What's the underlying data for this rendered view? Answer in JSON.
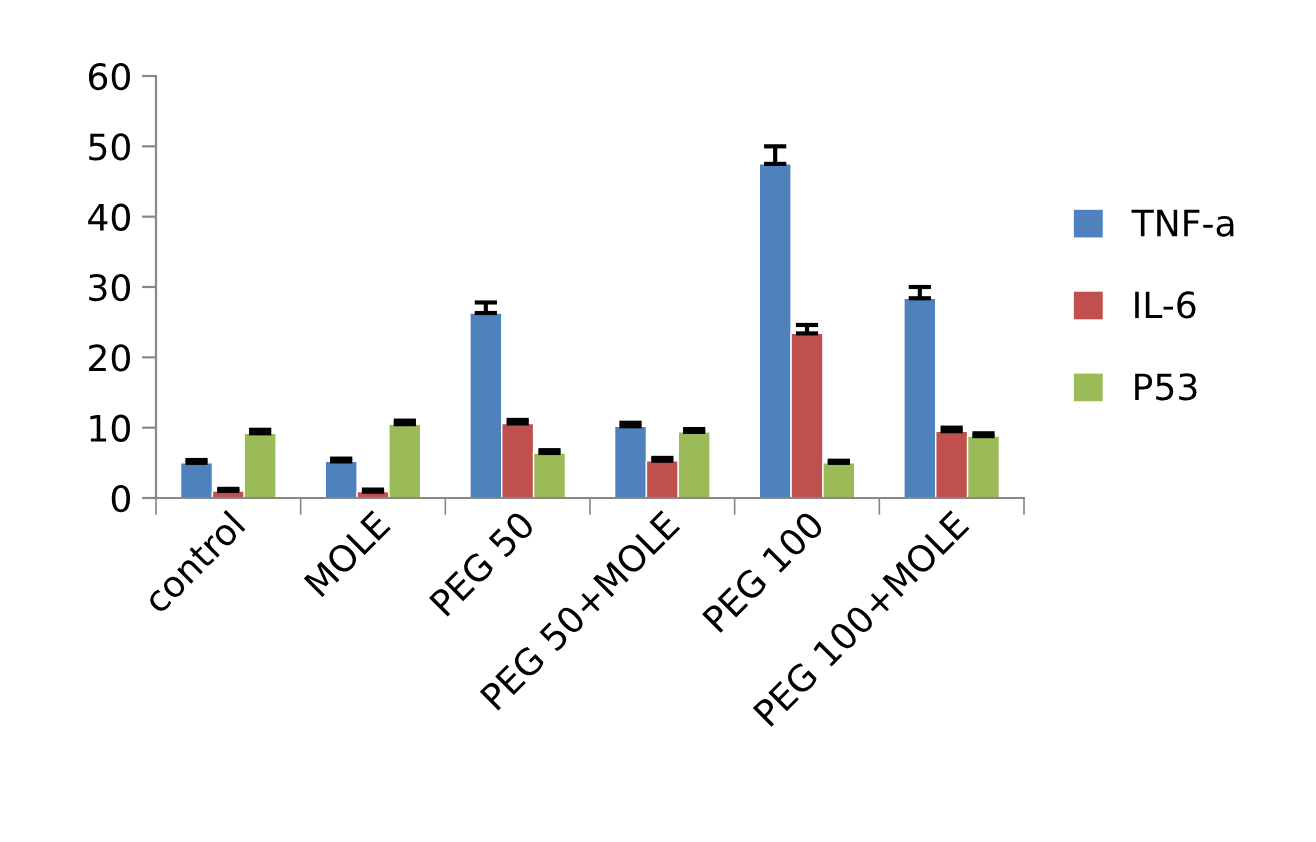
{
  "chart_data": {
    "type": "bar",
    "categories": [
      "control",
      "MOLE",
      "PEG 50",
      "PEG 50+MOLE",
      "PEG 100",
      "PEG 100+MOLE"
    ],
    "series": [
      {
        "name": "TNF-a",
        "color": "#4f81bd",
        "values": [
          5,
          5.2,
          26.3,
          10.2,
          47.5,
          28.4
        ],
        "errors": [
          0.4,
          0.4,
          1.5,
          0.5,
          2.5,
          1.6
        ]
      },
      {
        "name": "IL-6",
        "color": "#c0504d",
        "values": [
          1,
          0.9,
          10.6,
          5.3,
          23.4,
          9.5
        ],
        "errors": [
          0.3,
          0.3,
          0.5,
          0.4,
          1.2,
          0.5
        ]
      },
      {
        "name": "P53",
        "color": "#9bbb59",
        "values": [
          9.2,
          10.5,
          6.4,
          9.4,
          5,
          8.8
        ],
        "errors": [
          0.5,
          0.5,
          0.4,
          0.4,
          0.3,
          0.4
        ]
      }
    ],
    "ylim": [
      0,
      60
    ],
    "yticks": [
      0,
      10,
      20,
      30,
      40,
      50,
      60
    ],
    "grid": false,
    "legend": "right"
  }
}
